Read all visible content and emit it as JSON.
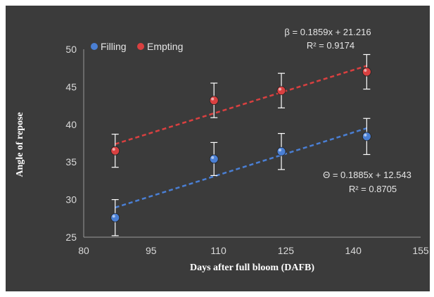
{
  "chart_data": {
    "type": "scatter",
    "xlabel": "Days after full  bloom (DAFB)",
    "ylabel": "Angle of repose",
    "xlim": [
      80,
      155
    ],
    "ylim": [
      25,
      50
    ],
    "x_ticks": [
      "80",
      "95",
      "110",
      "125",
      "140",
      "155"
    ],
    "y_ticks": [
      "25",
      "30",
      "35",
      "40",
      "45",
      "50"
    ],
    "grid": false,
    "legend_position": "top-left",
    "series": [
      {
        "name": "Filling",
        "color": "#4a7fd4",
        "x": [
          87,
          109,
          124,
          143
        ],
        "y": [
          27.6,
          35.4,
          36.4,
          38.4
        ],
        "error": [
          2.4,
          2.2,
          2.4,
          2.4
        ],
        "trendline": {
          "slope": 0.1885,
          "intercept": 12.543,
          "equation": "Θ = 0.1885x + 12.543",
          "r2": "R² = 0.8705"
        }
      },
      {
        "name": "Empting",
        "color": "#d94040",
        "x": [
          87,
          109,
          124,
          143
        ],
        "y": [
          36.5,
          43.2,
          44.5,
          47.0
        ],
        "error": [
          2.2,
          2.3,
          2.3,
          2.3
        ],
        "trendline": {
          "slope": 0.1859,
          "intercept": 21.216,
          "equation": "β = 0.1859x + 21.216",
          "r2": "R² = 0.9174"
        }
      }
    ]
  }
}
